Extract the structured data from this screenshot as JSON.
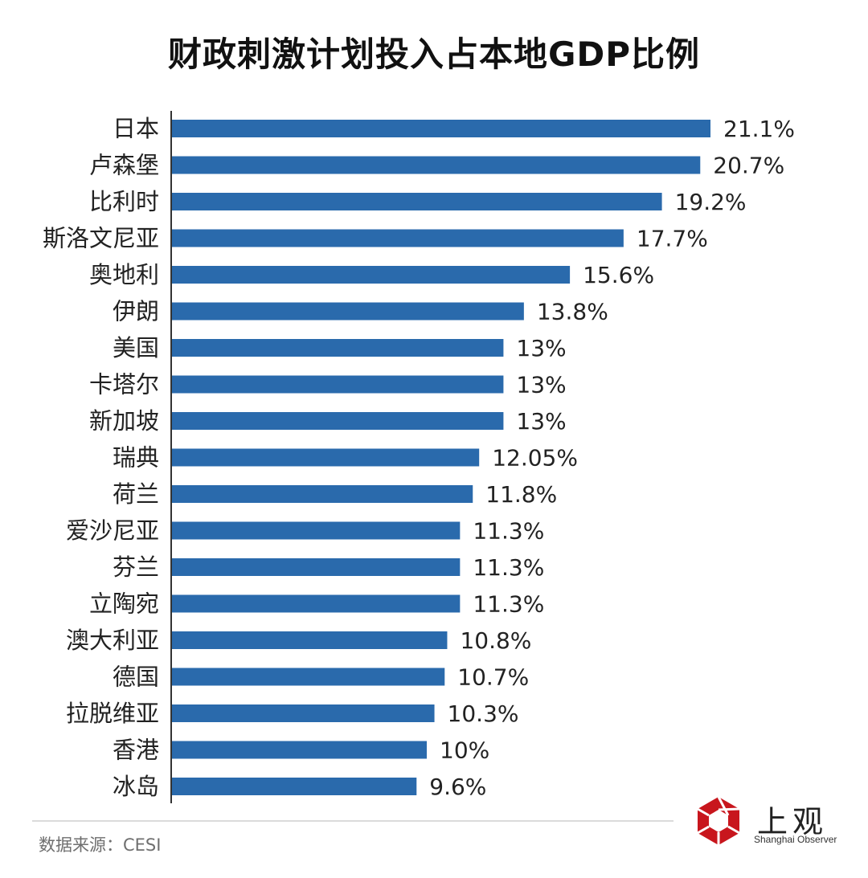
{
  "title": "财政刺激计划投入占本地GDP比例",
  "chart_data": {
    "type": "bar",
    "orientation": "horizontal",
    "title": "财政刺激计划投入占本地GDP比例",
    "categories": [
      "日本",
      "卢森堡",
      "比利时",
      "斯洛文尼亚",
      "奥地利",
      "伊朗",
      "美国",
      "卡塔尔",
      "新加坡",
      "瑞典",
      "荷兰",
      "爱沙尼亚",
      "芬兰",
      "立陶宛",
      "澳大利亚",
      "德国",
      "拉脱维亚",
      "香港",
      "冰岛"
    ],
    "values": [
      21.1,
      20.7,
      19.2,
      17.7,
      15.6,
      13.8,
      13,
      13,
      13,
      12.05,
      11.8,
      11.3,
      11.3,
      11.3,
      10.8,
      10.7,
      10.3,
      10,
      9.6
    ],
    "value_labels": [
      "21.1%",
      "20.7%",
      "19.2%",
      "17.7%",
      "15.6%",
      "13.8%",
      "13%",
      "13%",
      "13%",
      "12.05%",
      "11.8%",
      "11.3%",
      "11.3%",
      "11.3%",
      "10.8%",
      "10.7%",
      "10.3%",
      "10%",
      "9.6%"
    ],
    "xlim": [
      0,
      21.1
    ],
    "grid": false,
    "legend": "none",
    "bar_color": "#2a6aac"
  },
  "source": "数据来源：CESI",
  "logo": {
    "name": "上观",
    "subtitle": "Shanghai Observer",
    "color": "#c8161d"
  }
}
